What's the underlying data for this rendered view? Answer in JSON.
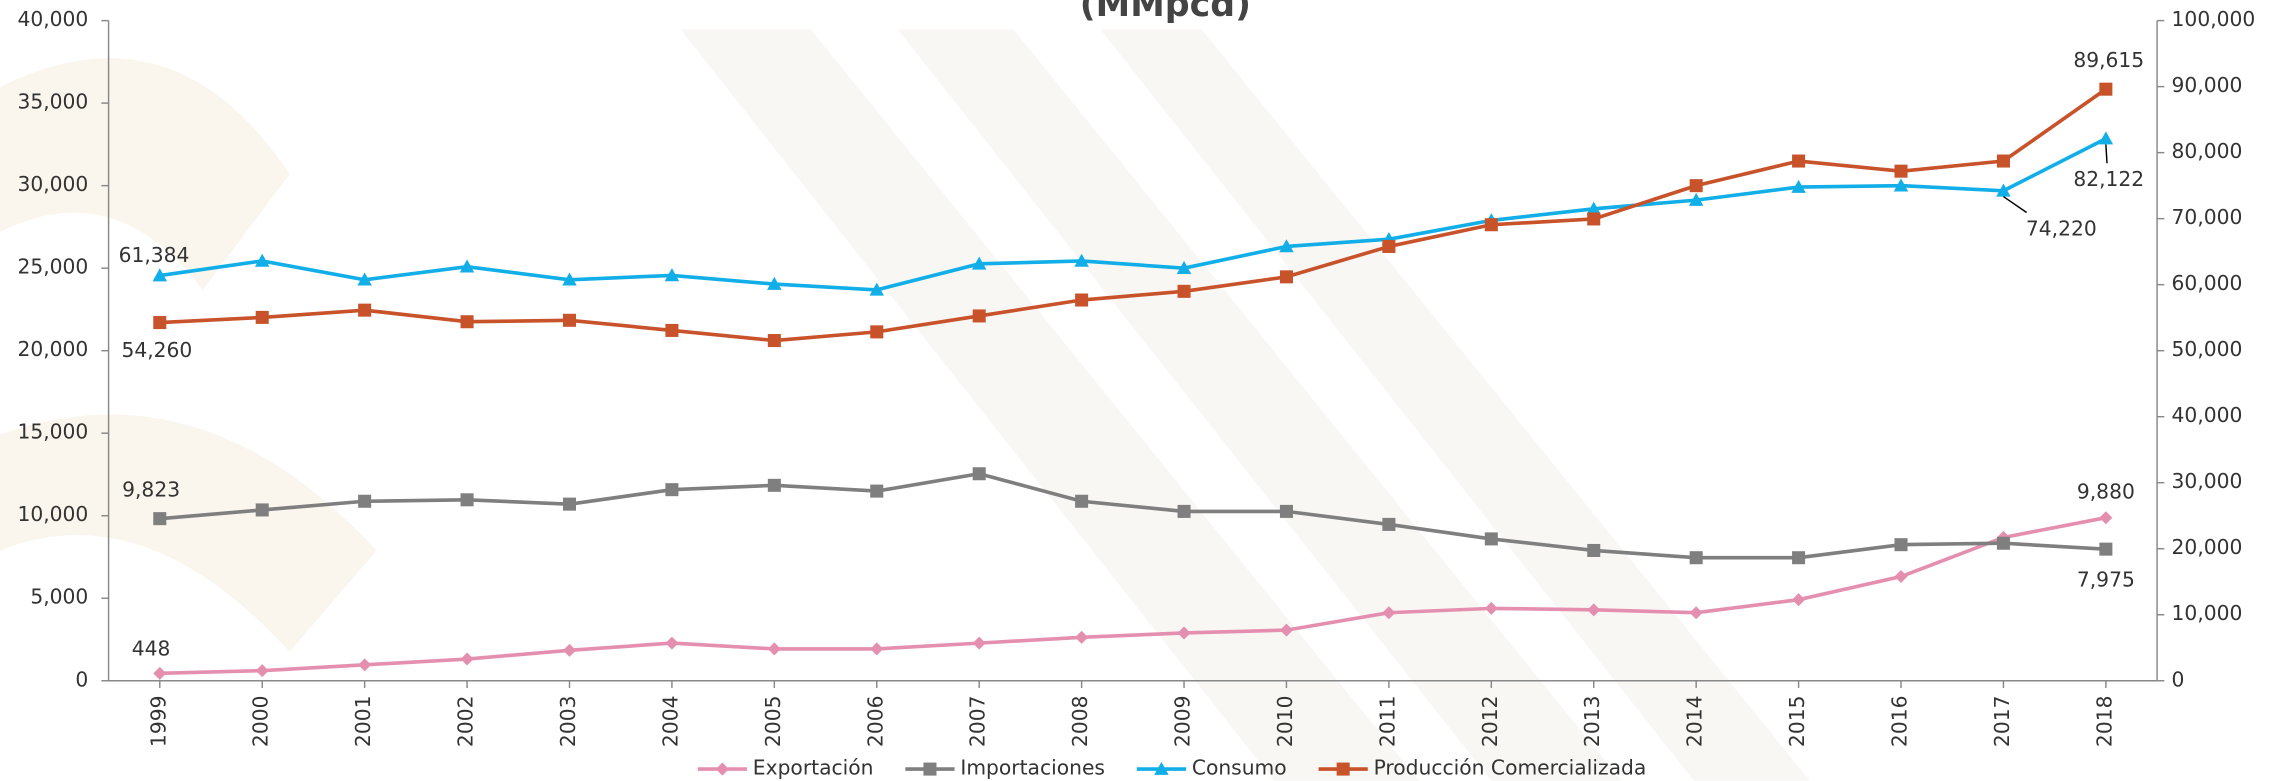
{
  "chart_data": {
    "type": "line",
    "title": "(MMpcd)",
    "categories": [
      "1999",
      "2000",
      "2001",
      "2002",
      "2003",
      "2004",
      "2005",
      "2006",
      "2007",
      "2008",
      "2009",
      "2010",
      "2011",
      "2012",
      "2013",
      "2014",
      "2015",
      "2016",
      "2017",
      "2018"
    ],
    "ylim": [
      0,
      40000
    ],
    "yticks": [
      0,
      {
        "value": 5000,
        "label": "5,000"
      },
      {
        "value": 10000,
        "label": "10,000"
      },
      {
        "value": 15000,
        "label": "15,000"
      },
      {
        "value": 20000,
        "label": "20,000"
      },
      {
        "value": 25000,
        "label": "25,000"
      },
      {
        "value": 30000,
        "label": "30,000"
      },
      {
        "value": 35000,
        "label": "35,000"
      },
      {
        "value": 40000,
        "label": "40,000"
      }
    ],
    "y2lim": [
      0,
      100000
    ],
    "y2ticks": [
      0,
      {
        "value": 10000,
        "label": "10,000"
      },
      {
        "value": 20000,
        "label": "20,000"
      },
      {
        "value": 30000,
        "label": "30,000"
      },
      {
        "value": 40000,
        "label": "40,000"
      },
      {
        "value": 50000,
        "label": "50,000"
      },
      {
        "value": 60000,
        "label": "60,000"
      },
      {
        "value": 70000,
        "label": "70,000"
      },
      {
        "value": 80000,
        "label": "80,000"
      },
      {
        "value": 90000,
        "label": "90,000"
      },
      {
        "value": 100000,
        "label": "100,000"
      }
    ],
    "legend": "bottom",
    "series": [
      {
        "name": "Exportación",
        "color": "#e58fb0",
        "marker": "diamond",
        "values": [
          448,
          614,
          965,
          1316,
          1842,
          2281,
          1930,
          1930,
          2281,
          2632,
          2895,
          3070,
          4123,
          4386,
          4298,
          4123,
          4912,
          6316,
          8684,
          9880
        ],
        "value_labels": [
          "448",
          null,
          null,
          null,
          null,
          null,
          null,
          null,
          null,
          null,
          null,
          null,
          null,
          null,
          null,
          null,
          null,
          null,
          null,
          "9,880"
        ]
      },
      {
        "name": "Importaciones",
        "color": "#7f7f7f",
        "marker": "square",
        "values": [
          9823,
          10351,
          10877,
          10965,
          10702,
          11579,
          11842,
          11491,
          12544,
          10877,
          10263,
          10263,
          9474,
          8596,
          7895,
          7456,
          7456,
          8246,
          8333,
          7975
        ],
        "value_labels": [
          "9,823",
          null,
          null,
          null,
          null,
          null,
          null,
          null,
          null,
          null,
          null,
          null,
          null,
          null,
          null,
          null,
          null,
          null,
          null,
          "7,975"
        ]
      },
      {
        "name": "Consumo",
        "color": "#12aee8",
        "marker": "triangle",
        "axis": "y2",
        "values": [
          61384,
          63597,
          60746,
          62720,
          60746,
          61404,
          60088,
          59211,
          63158,
          63597,
          62500,
          65789,
          66886,
          69737,
          71491,
          72807,
          74781,
          75000,
          74220,
          82122
        ],
        "value_labels": [
          "61,384",
          null,
          null,
          null,
          null,
          null,
          null,
          null,
          null,
          null,
          null,
          null,
          null,
          null,
          null,
          null,
          null,
          null,
          "74,220",
          "82,122"
        ]
      },
      {
        "name": "Producción Comercializada",
        "color": "#c8522a",
        "marker": "square",
        "axis": "y2",
        "values": [
          54260,
          55044,
          56140,
          54386,
          54605,
          53070,
          51535,
          52851,
          55263,
          57675,
          58991,
          61184,
          65789,
          69079,
          69956,
          75000,
          78728,
          77193,
          78728,
          89615
        ],
        "value_labels": [
          "54,260",
          null,
          null,
          null,
          null,
          null,
          null,
          null,
          null,
          null,
          null,
          null,
          null,
          null,
          null,
          null,
          null,
          null,
          null,
          "89,615"
        ]
      }
    ]
  }
}
